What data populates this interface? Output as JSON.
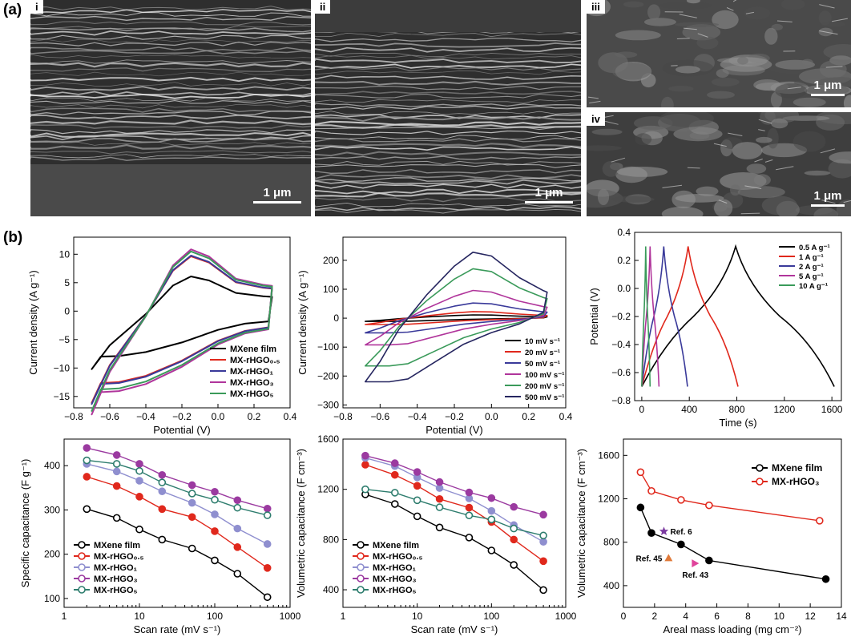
{
  "panel_labels": {
    "a": "(a)",
    "b": "(b)"
  },
  "sem_images": [
    {
      "label": "i",
      "scale": "1 μm"
    },
    {
      "label": "ii",
      "scale": "1 μm"
    },
    {
      "label": "iii",
      "scale": "1 μm"
    },
    {
      "label": "iv",
      "scale": "1 μm"
    }
  ],
  "chart_data": [
    {
      "type": "line",
      "subtype": "cyclic-voltammogram",
      "xlabel": "Potential (V)",
      "ylabel": "Current density (A g⁻¹)",
      "xlim": [
        -0.8,
        0.4
      ],
      "ylim": [
        -17,
        13
      ],
      "xticks": [
        "−0.8",
        "−0.6",
        "−0.4",
        "−0.2",
        "0.0",
        "0.2",
        "0.4"
      ],
      "yticks": [
        "−15",
        "−10",
        "−5",
        "0",
        "5",
        "10"
      ],
      "legend_position": "bottom-right",
      "legend": [
        "MXene film",
        "MX-rHGO₀.₅",
        "MX-rHGO₁",
        "MX-rHGO₃",
        "MX-rHGO₅"
      ],
      "series": [
        {
          "name": "MXene film",
          "color": "#000000",
          "scale": 1.0
        },
        {
          "name": "MX-rHGO₀.₅",
          "color": "#e0281c",
          "scale": 1.58
        },
        {
          "name": "MX-rHGO₁",
          "color": "#3a3a9a",
          "scale": 1.6
        },
        {
          "name": "MX-rHGO₃",
          "color": "#b0359b",
          "scale": 1.78
        },
        {
          "name": "MX-rHGO₅",
          "color": "#3a9a5a",
          "scale": 1.72
        }
      ],
      "shape": {
        "upper": [
          [
            -0.7,
            -10.2
          ],
          [
            -0.6,
            -6.0
          ],
          [
            -0.4,
            -0.5
          ],
          [
            -0.25,
            4.5
          ],
          [
            -0.15,
            6.1
          ],
          [
            -0.05,
            5.4
          ],
          [
            0.1,
            3.2
          ],
          [
            0.25,
            2.6
          ],
          [
            0.3,
            2.5
          ]
        ],
        "lower": [
          [
            0.3,
            2.5
          ],
          [
            0.28,
            -1.8
          ],
          [
            0.15,
            -2.2
          ],
          [
            0.0,
            -3.3
          ],
          [
            -0.2,
            -5.5
          ],
          [
            -0.4,
            -7.2
          ],
          [
            -0.55,
            -7.9
          ],
          [
            -0.65,
            -8.0
          ],
          [
            -0.7,
            -10.2
          ]
        ]
      }
    },
    {
      "type": "line",
      "subtype": "cyclic-voltammogram",
      "xlabel": "Potential (V)",
      "ylabel": "Current density (A g⁻¹)",
      "xlim": [
        -0.8,
        0.4
      ],
      "ylim": [
        -310,
        280
      ],
      "xticks": [
        "−0.8",
        "−0.6",
        "−0.4",
        "−0.2",
        "0.0",
        "0.2",
        "0.4"
      ],
      "yticks": [
        "−300",
        "−200",
        "−100",
        "0",
        "100",
        "200"
      ],
      "legend_position": "bottom-right",
      "legend": [
        "10 mV s⁻¹",
        "20 mV s⁻¹",
        "50 mV s⁻¹",
        "100 mV s⁻¹",
        "200 mV s⁻¹",
        "500 mV s⁻¹"
      ],
      "series": [
        {
          "name": "10 mV s⁻¹",
          "color": "#000000",
          "scale": 0.05
        },
        {
          "name": "20 mV s⁻¹",
          "color": "#e0281c",
          "scale": 0.1
        },
        {
          "name": "50 mV s⁻¹",
          "color": "#3a3a9a",
          "scale": 0.23
        },
        {
          "name": "100 mV s⁻¹",
          "color": "#b0359b",
          "scale": 0.42
        },
        {
          "name": "200 mV s⁻¹",
          "color": "#3a9a5a",
          "scale": 0.75
        },
        {
          "name": "500 mV s⁻¹",
          "color": "#262660",
          "scale": 1.0
        }
      ],
      "shape": {
        "upper": [
          [
            -0.68,
            -220
          ],
          [
            -0.6,
            -150
          ],
          [
            -0.5,
            -40
          ],
          [
            -0.35,
            80
          ],
          [
            -0.2,
            180
          ],
          [
            -0.1,
            228
          ],
          [
            0.0,
            215
          ],
          [
            0.15,
            140
          ],
          [
            0.28,
            95
          ],
          [
            0.3,
            90
          ]
        ],
        "lower": [
          [
            0.3,
            90
          ],
          [
            0.28,
            20
          ],
          [
            0.15,
            -20
          ],
          [
            0.0,
            -50
          ],
          [
            -0.15,
            -90
          ],
          [
            -0.3,
            -150
          ],
          [
            -0.45,
            -210
          ],
          [
            -0.55,
            -220
          ],
          [
            -0.68,
            -220
          ]
        ]
      }
    },
    {
      "type": "line",
      "subtype": "galvanostatic-charge-discharge",
      "xlabel": "Time (s)",
      "ylabel": "Potential (V)",
      "xlim": [
        -60,
        1680
      ],
      "ylim": [
        -0.8,
        0.4
      ],
      "xticks": [
        "0",
        "400",
        "800",
        "1200",
        "1600"
      ],
      "yticks": [
        "−0.8",
        "−0.6",
        "−0.4",
        "−0.2",
        "0.0",
        "0.2",
        "0.4"
      ],
      "legend_position": "top-right",
      "legend": [
        "0.5 A g⁻¹",
        "1 A g⁻¹",
        "2 A g⁻¹",
        "5 A g⁻¹",
        "10 A g⁻¹"
      ],
      "series": [
        {
          "name": "0.5 A g⁻¹",
          "color": "#000000",
          "t_peak": 790,
          "t_end": 1620
        },
        {
          "name": "1 A g⁻¹",
          "color": "#e0281c",
          "t_peak": 390,
          "t_end": 810
        },
        {
          "name": "2 A g⁻¹",
          "color": "#3a3a9a",
          "t_peak": 185,
          "t_end": 385
        },
        {
          "name": "5 A g⁻¹",
          "color": "#b0359b",
          "t_peak": 70,
          "t_end": 145
        },
        {
          "name": "10 A g⁻¹",
          "color": "#3a9a5a",
          "t_peak": 33,
          "t_end": 70
        }
      ]
    },
    {
      "type": "line",
      "xscale": "log",
      "xlabel": "Scan rate (mV s⁻¹)",
      "ylabel": "Specific capacitance (F g⁻¹)",
      "xlim": [
        1,
        1000
      ],
      "ylim": [
        80,
        460
      ],
      "xticks": [
        "1",
        "10",
        "100",
        "1000"
      ],
      "yticks": [
        "100",
        "200",
        "300",
        "400"
      ],
      "legend_position": "bottom-left",
      "x": [
        2,
        5,
        10,
        20,
        50,
        100,
        200,
        500
      ],
      "series": [
        {
          "name": "MXene film",
          "color": "#000000",
          "values": [
            302,
            282,
            256,
            233,
            213,
            186,
            156,
            103
          ]
        },
        {
          "name": "MX-rHGO₀.₅",
          "color": "#e0281c",
          "values": [
            375,
            354,
            330,
            302,
            284,
            252,
            216,
            169
          ]
        },
        {
          "name": "MX-rHGO₁",
          "color": "#8f8fcf",
          "values": [
            404,
            387,
            366,
            342,
            316,
            290,
            258,
            223
          ]
        },
        {
          "name": "MX-rHGO₃",
          "color": "#9b3aa0",
          "values": [
            440,
            424,
            404,
            379,
            356,
            341,
            322,
            303
          ]
        },
        {
          "name": "MX-rHGO₅",
          "color": "#2e7d6e",
          "values": [
            412,
            404,
            388,
            362,
            337,
            323,
            305,
            288
          ]
        }
      ]
    },
    {
      "type": "line",
      "xscale": "log",
      "xlabel": "Scan rate (mV s⁻¹)",
      "ylabel": "Volumetric capacitance (F cm⁻³)",
      "xlim": [
        1,
        1000
      ],
      "ylim": [
        260,
        1600
      ],
      "xticks": [
        "1",
        "10",
        "100",
        "1000"
      ],
      "yticks": [
        "400",
        "800",
        "1200",
        "1600"
      ],
      "legend_position": "bottom-left",
      "x": [
        2,
        5,
        10,
        20,
        50,
        100,
        200,
        500
      ],
      "series": [
        {
          "name": "MXene film",
          "color": "#000000",
          "values": [
            1160,
            1083,
            985,
            896,
            816,
            713,
            598,
            398
          ]
        },
        {
          "name": "MX-rHGO₀.₅",
          "color": "#e0281c",
          "values": [
            1396,
            1315,
            1228,
            1123,
            1054,
            940,
            800,
            628
          ]
        },
        {
          "name": "MX-rHGO₁",
          "color": "#8f8fcf",
          "values": [
            1450,
            1385,
            1295,
            1210,
            1128,
            1028,
            915,
            782
          ]
        },
        {
          "name": "MX-rHGO₃",
          "color": "#9b3aa0",
          "values": [
            1468,
            1408,
            1338,
            1258,
            1175,
            1130,
            1060,
            998
          ]
        },
        {
          "name": "MX-rHGO₅",
          "color": "#2e7d6e",
          "values": [
            1200,
            1173,
            1113,
            1057,
            992,
            960,
            888,
            832
          ]
        }
      ]
    },
    {
      "type": "scatter",
      "xlabel": "Areal mass loading (mg cm⁻²)",
      "ylabel": "Volumetric capacitance (F cm⁻³)",
      "xlim": [
        0,
        14
      ],
      "ylim": [
        200,
        1750
      ],
      "xticks": [
        "0",
        "2",
        "4",
        "6",
        "8",
        "10",
        "12",
        "14"
      ],
      "yticks": [
        "400",
        "800",
        "1200",
        "1600"
      ],
      "legend_position": "top-right",
      "series": [
        {
          "name": "MXene film",
          "color": "#000000",
          "x": [
            1.1,
            1.8,
            3.7,
            5.5,
            13.0
          ],
          "y": [
            1120,
            885,
            780,
            632,
            460
          ]
        },
        {
          "name": "MX-rHGO₃",
          "color": "#e0281c",
          "x": [
            1.1,
            1.8,
            3.7,
            5.5,
            12.6
          ],
          "y": [
            1445,
            1272,
            1190,
            1140,
            998
          ]
        }
      ],
      "references": [
        {
          "label": "Ref. 6",
          "x": 2.6,
          "y": 900,
          "color": "#7b3aa0",
          "marker": "star"
        },
        {
          "label": "Ref. 45",
          "x": 2.9,
          "y": 655,
          "color": "#e07a3a",
          "marker": "triangle"
        },
        {
          "label": "Ref. 43",
          "x": 4.6,
          "y": 605,
          "color": "#e0439b",
          "marker": "triangle-right"
        }
      ]
    }
  ]
}
